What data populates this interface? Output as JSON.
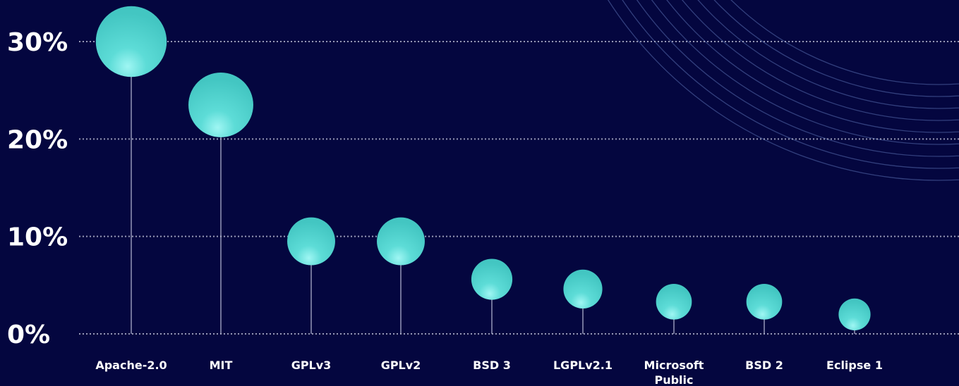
{
  "chart_data": {
    "type": "scatter",
    "variant": "lollipop-bubble",
    "title": "",
    "xlabel": "",
    "ylabel": "",
    "ylim": [
      0,
      30
    ],
    "yticks": [
      {
        "value": 0,
        "label": "0%"
      },
      {
        "value": 10,
        "label": "10%"
      },
      {
        "value": 20,
        "label": "20%"
      },
      {
        "value": 30,
        "label": "30%"
      }
    ],
    "grid": true,
    "legend": "none",
    "categories": [
      "Apache-2.0",
      "MIT",
      "GPLv3",
      "GPLv2",
      "BSD 3",
      "LGPLv2.1",
      "Microsoft Public",
      "BSD 2",
      "Eclipse 1"
    ],
    "values": [
      30,
      23.5,
      9.5,
      9.5,
      5.6,
      4.6,
      3.3,
      3.3,
      2.0
    ],
    "colors": {
      "background": "#04063f",
      "bubble": "#4ed4cf",
      "bubble_highlight": "#8ff3f0",
      "text": "#ffffff"
    }
  }
}
